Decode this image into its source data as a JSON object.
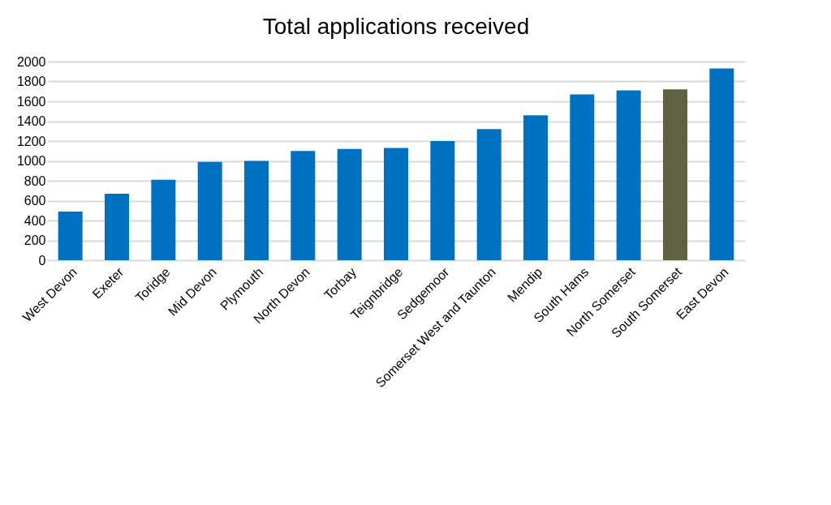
{
  "chart_data": {
    "type": "bar",
    "title": "Total applications received",
    "categories": [
      "West Devon",
      "Exeter",
      "Toridge",
      "Mid Devon",
      "Plymouth",
      "North Devon",
      "Torbay",
      "Teignbridge",
      "Sedgemoor",
      "Somerset West and Taunton",
      "Mendip",
      "South Hams",
      "North Somerset",
      "South Somerset",
      "East Devon"
    ],
    "values": [
      490,
      670,
      810,
      990,
      1000,
      1100,
      1120,
      1130,
      1200,
      1320,
      1460,
      1670,
      1710,
      1720,
      1930
    ],
    "colors": [
      "#0070c0",
      "#0070c0",
      "#0070c0",
      "#0070c0",
      "#0070c0",
      "#0070c0",
      "#0070c0",
      "#0070c0",
      "#0070c0",
      "#0070c0",
      "#0070c0",
      "#0070c0",
      "#0070c0",
      "#616142",
      "#0070c0"
    ],
    "ylim": [
      0,
      2000
    ],
    "yticks": [
      0,
      200,
      400,
      600,
      800,
      1000,
      1200,
      1400,
      1600,
      1800,
      2000
    ],
    "grid": "y"
  }
}
